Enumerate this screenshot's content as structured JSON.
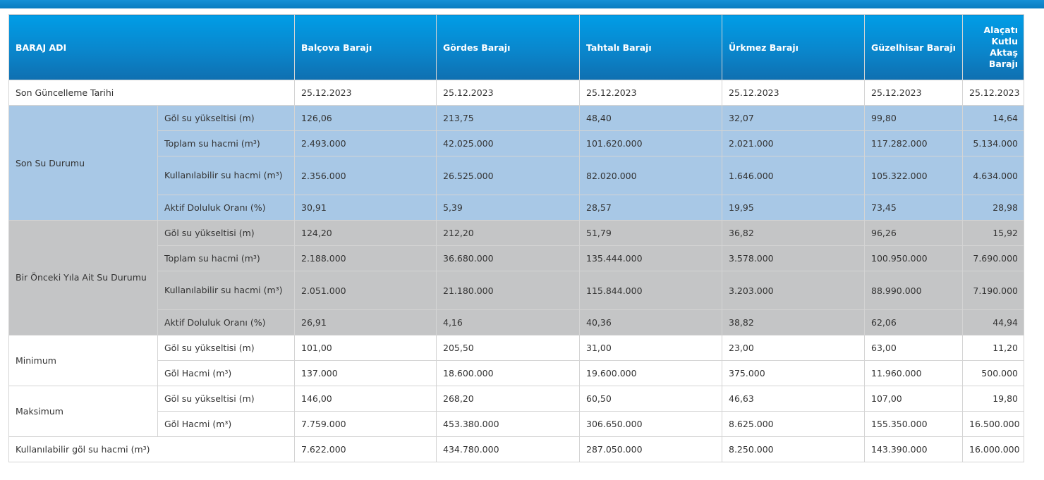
{
  "header": {
    "first": "BARAJ ADI",
    "dams": [
      "Balçova Barajı",
      "Gördes Barajı",
      "Tahtalı Barajı",
      "Ürkmez Barajı",
      "Güzelhisar Barajı",
      "Alaçatı Kutlu Aktaş Barajı"
    ]
  },
  "last_update": {
    "label": "Son Güncelleme Tarihi",
    "values": [
      "25.12.2023",
      "25.12.2023",
      "25.12.2023",
      "25.12.2023",
      "25.12.2023",
      "25.12.2023"
    ]
  },
  "current": {
    "label": "Son Su Durumu",
    "rows": [
      {
        "label": "Göl su yükseltisi (m)",
        "values": [
          "126,06",
          "213,75",
          "48,40",
          "32,07",
          "99,80",
          "14,64"
        ]
      },
      {
        "label": "Toplam su hacmi (m³)",
        "values": [
          "2.493.000",
          "42.025.000",
          "101.620.000",
          "2.021.000",
          "117.282.000",
          "5.134.000"
        ]
      },
      {
        "label": "Kullanılabilir su hacmi (m³)",
        "values": [
          "2.356.000",
          "26.525.000",
          "82.020.000",
          "1.646.000",
          "105.322.000",
          "4.634.000"
        ]
      },
      {
        "label": "Aktif Doluluk Oranı (%)",
        "values": [
          "30,91",
          "5,39",
          "28,57",
          "19,95",
          "73,45",
          "28,98"
        ]
      }
    ]
  },
  "previous": {
    "label": "Bir Önceki Yıla Ait Su Durumu",
    "rows": [
      {
        "label": "Göl su yükseltisi (m)",
        "values": [
          "124,20",
          "212,20",
          "51,79",
          "36,82",
          "96,26",
          "15,92"
        ]
      },
      {
        "label": "Toplam su hacmi (m³)",
        "values": [
          "2.188.000",
          "36.680.000",
          "135.444.000",
          "3.578.000",
          "100.950.000",
          "7.690.000"
        ]
      },
      {
        "label": "Kullanılabilir su hacmi (m³)",
        "values": [
          "2.051.000",
          "21.180.000",
          "115.844.000",
          "3.203.000",
          "88.990.000",
          "7.190.000"
        ]
      },
      {
        "label": "Aktif Doluluk Oranı (%)",
        "values": [
          "26,91",
          "4,16",
          "40,36",
          "38,82",
          "62,06",
          "44,94"
        ]
      }
    ]
  },
  "minimum": {
    "label": "Minimum",
    "rows": [
      {
        "label": "Göl su yükseltisi (m)",
        "values": [
          "101,00",
          "205,50",
          "31,00",
          "23,00",
          "63,00",
          "11,20"
        ]
      },
      {
        "label": "Göl Hacmi (m³)",
        "values": [
          "137.000",
          "18.600.000",
          "19.600.000",
          "375.000",
          "11.960.000",
          "500.000"
        ]
      }
    ]
  },
  "maximum": {
    "label": "Maksimum",
    "rows": [
      {
        "label": "Göl su yükseltisi (m)",
        "values": [
          "146,00",
          "268,20",
          "60,50",
          "46,63",
          "107,00",
          "19,80"
        ]
      },
      {
        "label": "Göl Hacmi (m³)",
        "values": [
          "7.759.000",
          "453.380.000",
          "306.650.000",
          "8.625.000",
          "155.350.000",
          "16.500.000"
        ]
      }
    ]
  },
  "usable": {
    "label": "Kullanılabilir göl su hacmi (m³)",
    "values": [
      "7.622.000",
      "434.780.000",
      "287.050.000",
      "8.250.000",
      "143.390.000",
      "16.000.000"
    ]
  }
}
